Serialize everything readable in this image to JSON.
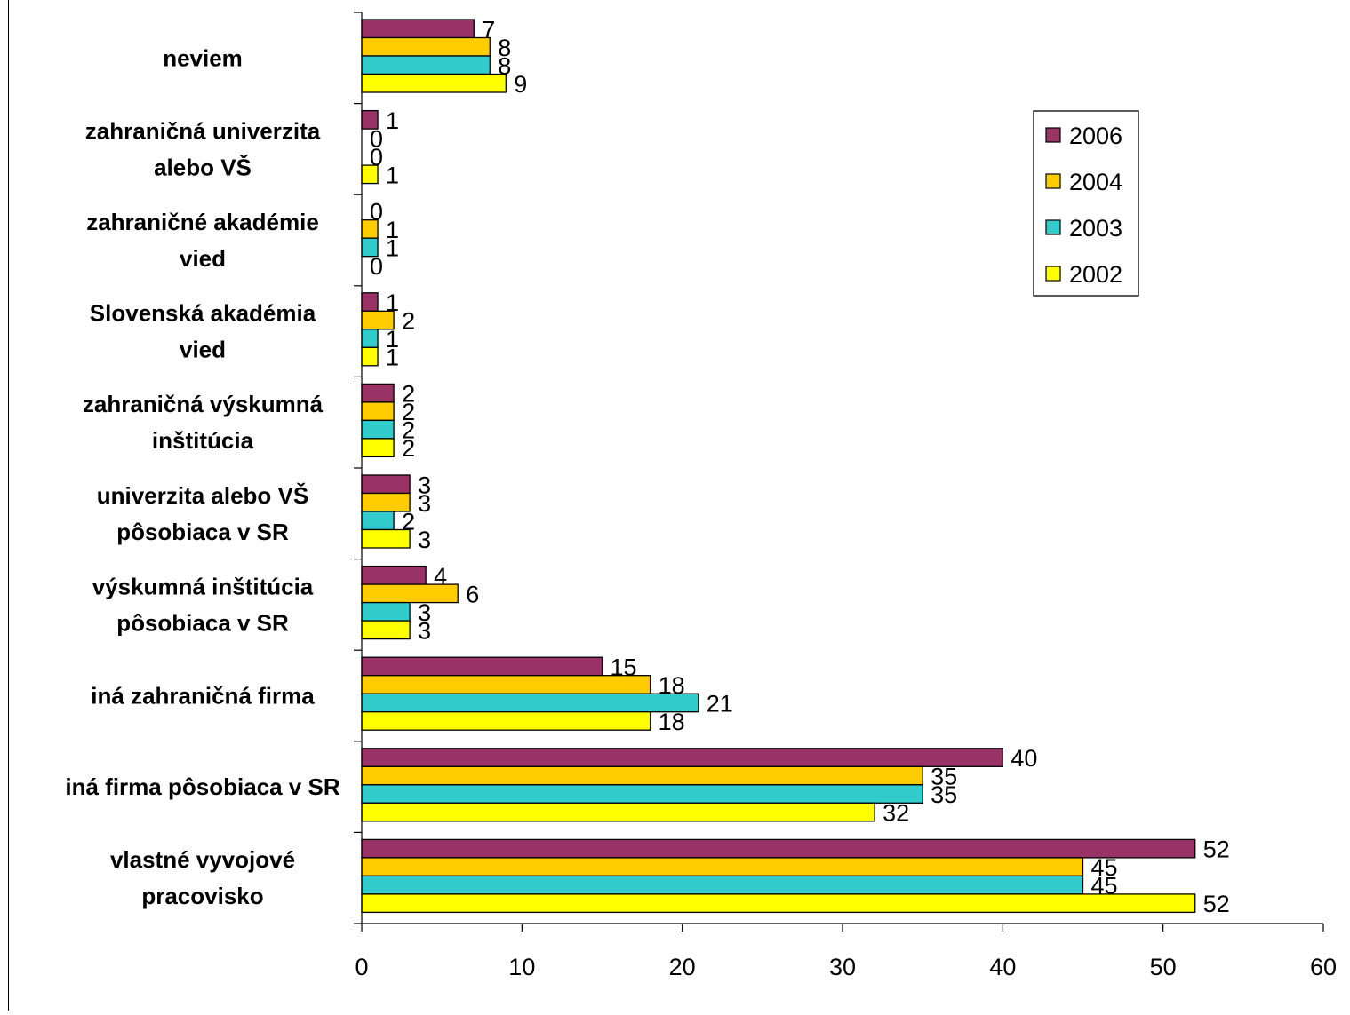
{
  "chart_data": {
    "type": "bar",
    "orientation": "horizontal",
    "categories": [
      [
        "neviem"
      ],
      [
        "zahraničná univerzita",
        "alebo VŠ"
      ],
      [
        "zahraničné akadémie",
        "vied"
      ],
      [
        "Slovenská akadémia",
        "vied"
      ],
      [
        "zahraničná výskumná",
        "inštitúcia"
      ],
      [
        "univerzita alebo VŠ",
        "pôsobiaca v SR"
      ],
      [
        "výskumná inštitúcia",
        "pôsobiaca v SR"
      ],
      [
        "iná zahraničná firma"
      ],
      [
        "iná firma pôsobiaca v SR"
      ],
      [
        "vlastné vyvojové",
        "pracovisko"
      ]
    ],
    "series": [
      {
        "name": "2006",
        "color": "#993366",
        "values": [
          7,
          1,
          0,
          1,
          2,
          3,
          4,
          15,
          40,
          52
        ]
      },
      {
        "name": "2004",
        "color": "#FFCC00",
        "values": [
          8,
          0,
          1,
          2,
          2,
          3,
          6,
          18,
          35,
          45
        ]
      },
      {
        "name": "2003",
        "color": "#33CCCC",
        "values": [
          8,
          0,
          1,
          1,
          2,
          2,
          3,
          21,
          35,
          45
        ]
      },
      {
        "name": "2002",
        "color": "#FFFF00",
        "values": [
          9,
          1,
          0,
          1,
          2,
          3,
          3,
          18,
          32,
          52
        ]
      }
    ],
    "xlim": [
      0,
      60
    ],
    "xticks": [
      "0",
      "10",
      "20",
      "30",
      "40",
      "50",
      "60"
    ],
    "legend_position": "top-right",
    "grid": false,
    "data_labels": true,
    "title": "",
    "xlabel": "",
    "ylabel": ""
  }
}
